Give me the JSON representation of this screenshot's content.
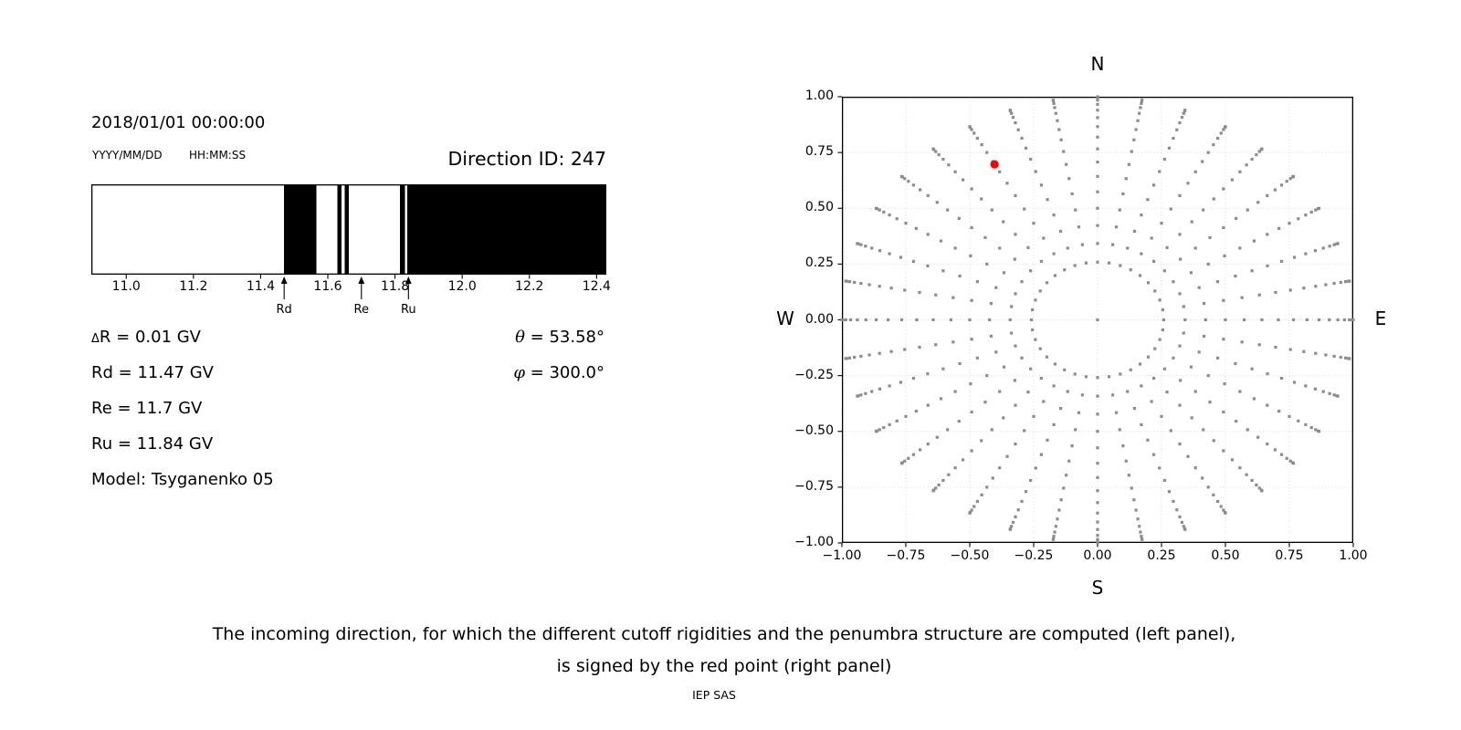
{
  "figure": {
    "left_panel": {
      "datetime": "2018/01/01 00:00:00",
      "date_format_label": "YYYY/MM/DD",
      "time_format_label": "HH:MM:SS",
      "direction_id_label": "Direction ID: 247",
      "info_rows": [
        "ΔR = 0.01 GV",
        "Rd = 11.47 GV",
        "Re = 11.7 GV",
        "Ru = 11.84 GV",
        "Model: Tsyganenko 05"
      ],
      "angle_rows": [
        "θ = 53.58°",
        "φ = 300.0°"
      ]
    },
    "right_panel": {
      "compass": {
        "top": "N",
        "bottom": "S",
        "left": "W",
        "right": "E"
      }
    },
    "caption": {
      "line1": "The incoming direction, for which the different cutoff rigidities and the penumbra structure are computed (left panel),",
      "line2": "is signed by the red point (right panel)",
      "credit": "IEP SAS"
    }
  },
  "chart_data": [
    {
      "type": "bar",
      "title": "",
      "xlabel": "",
      "ylabel": "",
      "description": "Penumbra structure vs rigidity (GV): black bands mark computed intervals, white gaps between them",
      "xlim": [
        10.896,
        12.429
      ],
      "xticks": [
        11.0,
        11.2,
        11.4,
        11.6,
        11.8,
        12.0,
        12.2,
        12.4
      ],
      "xtick_labels": [
        "11.0",
        "11.2",
        "11.4",
        "11.6",
        "11.8",
        "12.0",
        "12.2",
        "12.4"
      ],
      "bar_color": "#000000",
      "background": "#ffffff",
      "black_intervals_gv": [
        [
          11.47,
          11.566
        ],
        [
          11.628,
          11.641
        ],
        [
          11.65,
          11.662
        ],
        [
          11.815,
          11.829
        ],
        [
          11.836,
          12.429
        ]
      ],
      "annotations": [
        {
          "label": "Rd",
          "x_gv": 11.47
        },
        {
          "label": "Re",
          "x_gv": 11.7
        },
        {
          "label": "Ru",
          "x_gv": 11.84
        }
      ],
      "values": {
        "delta_R_gv": 0.01,
        "Rd_gv": 11.47,
        "Re_gv": 11.7,
        "Ru_gv": 11.84,
        "theta_deg": 53.58,
        "phi_deg": 300.0,
        "model": "Tsyganenko 05",
        "direction_id": 247
      }
    },
    {
      "type": "scatter",
      "title": "",
      "xlabel": "S",
      "ylabel": "",
      "description": "Sky-direction grid (N up, E right): gray dots at azimuths every 10 deg, radius = sin(zenith) for zenith 15-90 deg step 5, plus zenith point at origin; red dot marks the selected incoming direction",
      "xlim": [
        -1,
        1
      ],
      "ylim": [
        -1,
        1
      ],
      "xticks": [
        -1,
        -0.75,
        -0.5,
        -0.25,
        0,
        0.25,
        0.5,
        0.75,
        1
      ],
      "yticks": [
        1,
        0.75,
        0.5,
        0.25,
        0,
        -0.25,
        -0.5,
        -0.75,
        -1
      ],
      "xtick_labels": [
        "−1.00",
        "−0.75",
        "−0.50",
        "−0.25",
        "0.00",
        "0.25",
        "0.50",
        "0.75",
        "1.00"
      ],
      "ytick_labels": [
        "1.00",
        "0.75",
        "0.50",
        "0.25",
        "0.00",
        "−0.25",
        "−0.50",
        "−0.75",
        "−1.00"
      ],
      "grid": true,
      "grid_color": "#d9d9d9",
      "gray_marker_color": "#8c8c8c",
      "direction_grid_rule": {
        "azimuth_deg": {
          "start": 0,
          "step": 10,
          "count": 36
        },
        "zenith_deg": {
          "start": 15,
          "step": 5,
          "end": 90
        },
        "radius": "sin(zenith)",
        "includes_zenith_point_at_origin": true
      },
      "red_point": {
        "x": -0.403,
        "y": 0.697,
        "color": "#ff0000"
      }
    }
  ]
}
